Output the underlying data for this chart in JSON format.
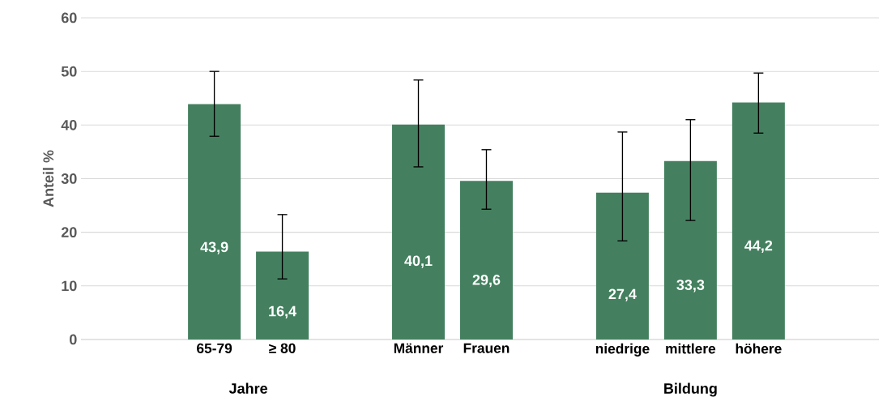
{
  "chart_data": {
    "type": "bar",
    "ylabel": "Anteil %",
    "categories": [
      null,
      "65-79",
      "≥ 80",
      null,
      "Männer",
      "Frauen",
      null,
      "niedrige",
      "mittlere",
      "höhere",
      null
    ],
    "values": [
      null,
      43.9,
      16.4,
      null,
      40.1,
      29.6,
      null,
      27.4,
      33.3,
      44.2,
      null
    ],
    "value_labels": [
      null,
      "43,9",
      "16,4",
      null,
      "40,1",
      "29,6",
      null,
      "27,4",
      "33,3",
      "44,2",
      null
    ],
    "errors": [
      null,
      [
        37.9,
        50.0
      ],
      [
        11.3,
        23.3
      ],
      null,
      [
        32.2,
        48.4
      ],
      [
        24.3,
        35.4
      ],
      null,
      [
        18.4,
        38.7
      ],
      [
        22.2,
        41.0
      ],
      [
        38.5,
        49.7
      ],
      null
    ],
    "color": "#44805f",
    "ylim": [
      0,
      60
    ],
    "yticks": [
      0,
      10,
      20,
      30,
      40,
      50,
      60
    ],
    "grid": "y",
    "annotations": [
      "Jahre",
      "Bildung"
    ]
  }
}
